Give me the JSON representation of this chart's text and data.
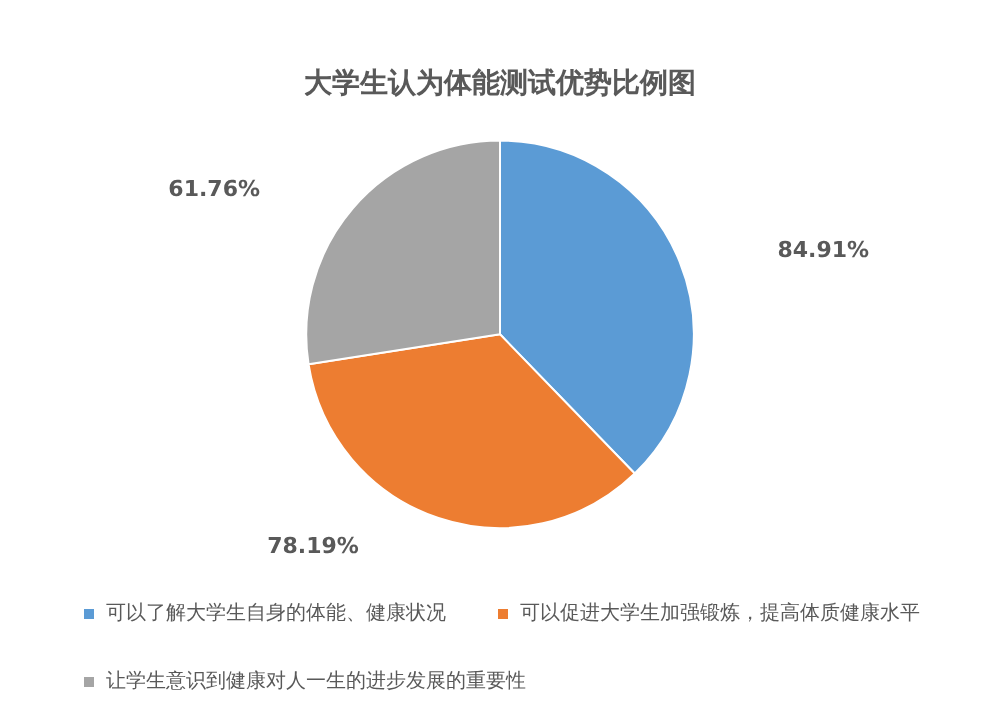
{
  "chart_data": {
    "type": "pie",
    "title": "大学生认为体能测试优势比例图",
    "categories": [
      "可以了解大学生自身的体能、健康状况",
      "可以促进大学生加强锻炼，提高体质健康水平",
      "让学生意识到健康对人一生的进步发展的重要性"
    ],
    "values": [
      84.91,
      78.19,
      61.76
    ],
    "colors": [
      "#5b9bd5",
      "#ed7d31",
      "#a5a5a5"
    ],
    "value_labels": [
      "84.91%",
      "78.19%",
      "61.76%"
    ],
    "legend": "bottom"
  }
}
